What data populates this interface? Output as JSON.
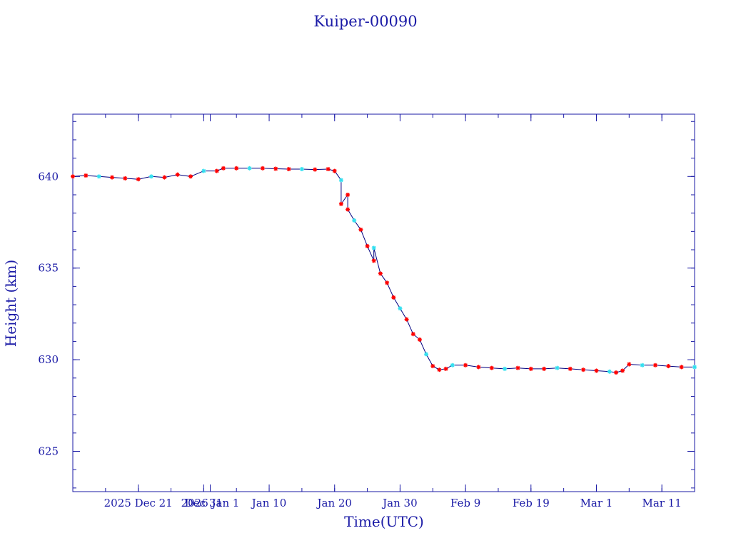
{
  "chart_data": {
    "type": "line",
    "title": "Kuiper-00090",
    "xlabel": "Time(UTC)",
    "ylabel": "Height (km)",
    "xlim": [
      "2025-12-11",
      "2026-03-16"
    ],
    "ylim": [
      622.8,
      643.4
    ],
    "x_ticks": [
      {
        "date": "2025-12-21",
        "label": "2025 Dec 21"
      },
      {
        "date": "2025-12-31",
        "label": "Dec 31"
      },
      {
        "date": "2026-01-01",
        "label": "2026 Jan 1"
      },
      {
        "date": "2026-01-10",
        "label": "Jan 10"
      },
      {
        "date": "2026-01-20",
        "label": "Jan 20"
      },
      {
        "date": "2026-01-30",
        "label": "Jan 30"
      },
      {
        "date": "2026-02-09",
        "label": "Feb  9"
      },
      {
        "date": "2026-02-19",
        "label": "Feb 19"
      },
      {
        "date": "2026-03-01",
        "label": "Mar  1"
      },
      {
        "date": "2026-03-11",
        "label": "Mar 11"
      }
    ],
    "y_ticks": [
      625,
      630,
      635,
      640
    ],
    "grid": false,
    "colors": {
      "axes": "#1a1aa6",
      "line": "#000080",
      "marker_primary": "#ff0000",
      "marker_secondary": "#33e0f0"
    },
    "series": [
      {
        "points": [
          [
            "2025-12-11",
            640.0
          ],
          [
            "2025-12-13",
            640.05
          ],
          [
            "2025-12-15",
            640.0
          ],
          [
            "2025-12-17",
            639.95
          ],
          [
            "2025-12-19",
            639.9
          ],
          [
            "2025-12-21",
            639.85
          ],
          [
            "2025-12-23",
            640.0
          ],
          [
            "2025-12-25",
            639.95
          ],
          [
            "2025-12-27",
            640.1
          ],
          [
            "2025-12-29",
            640.0
          ],
          [
            "2025-12-31",
            640.3
          ],
          [
            "2026-01-02",
            640.3
          ],
          [
            "2026-01-03",
            640.45
          ],
          [
            "2026-01-05",
            640.45
          ],
          [
            "2026-01-07",
            640.45
          ],
          [
            "2026-01-09",
            640.45
          ],
          [
            "2026-01-11",
            640.42
          ],
          [
            "2026-01-13",
            640.4
          ],
          [
            "2026-01-15",
            640.4
          ],
          [
            "2026-01-17",
            640.38
          ],
          [
            "2026-01-19",
            640.4
          ],
          [
            "2026-01-20",
            640.3
          ],
          [
            "2026-01-21",
            639.8
          ],
          [
            "2026-01-21",
            638.5
          ],
          [
            "2026-01-22",
            639.0
          ],
          [
            "2026-01-22",
            638.2
          ],
          [
            "2026-01-23",
            637.6
          ],
          [
            "2026-01-24",
            637.1
          ],
          [
            "2026-01-25",
            636.2
          ],
          [
            "2026-01-26",
            635.4
          ],
          [
            "2026-01-26",
            636.1
          ],
          [
            "2026-01-27",
            634.7
          ],
          [
            "2026-01-28",
            634.2
          ],
          [
            "2026-01-29",
            633.4
          ],
          [
            "2026-01-30",
            632.8
          ],
          [
            "2026-01-31",
            632.2
          ],
          [
            "2026-02-01",
            631.4
          ],
          [
            "2026-02-02",
            631.1
          ],
          [
            "2026-02-03",
            630.3
          ],
          [
            "2026-02-04",
            629.65
          ],
          [
            "2026-02-05",
            629.45
          ],
          [
            "2026-02-06",
            629.5
          ],
          [
            "2026-02-07",
            629.7
          ],
          [
            "2026-02-09",
            629.7
          ],
          [
            "2026-02-11",
            629.6
          ],
          [
            "2026-02-13",
            629.55
          ],
          [
            "2026-02-15",
            629.5
          ],
          [
            "2026-02-17",
            629.55
          ],
          [
            "2026-02-19",
            629.5
          ],
          [
            "2026-02-21",
            629.5
          ],
          [
            "2026-02-23",
            629.55
          ],
          [
            "2026-02-25",
            629.5
          ],
          [
            "2026-02-27",
            629.45
          ],
          [
            "2026-03-01",
            629.4
          ],
          [
            "2026-03-03",
            629.35
          ],
          [
            "2026-03-04",
            629.3
          ],
          [
            "2026-03-05",
            629.4
          ],
          [
            "2026-03-06",
            629.75
          ],
          [
            "2026-03-08",
            629.7
          ],
          [
            "2026-03-10",
            629.7
          ],
          [
            "2026-03-12",
            629.65
          ],
          [
            "2026-03-14",
            629.6
          ],
          [
            "2026-03-16",
            629.6
          ]
        ]
      }
    ]
  }
}
